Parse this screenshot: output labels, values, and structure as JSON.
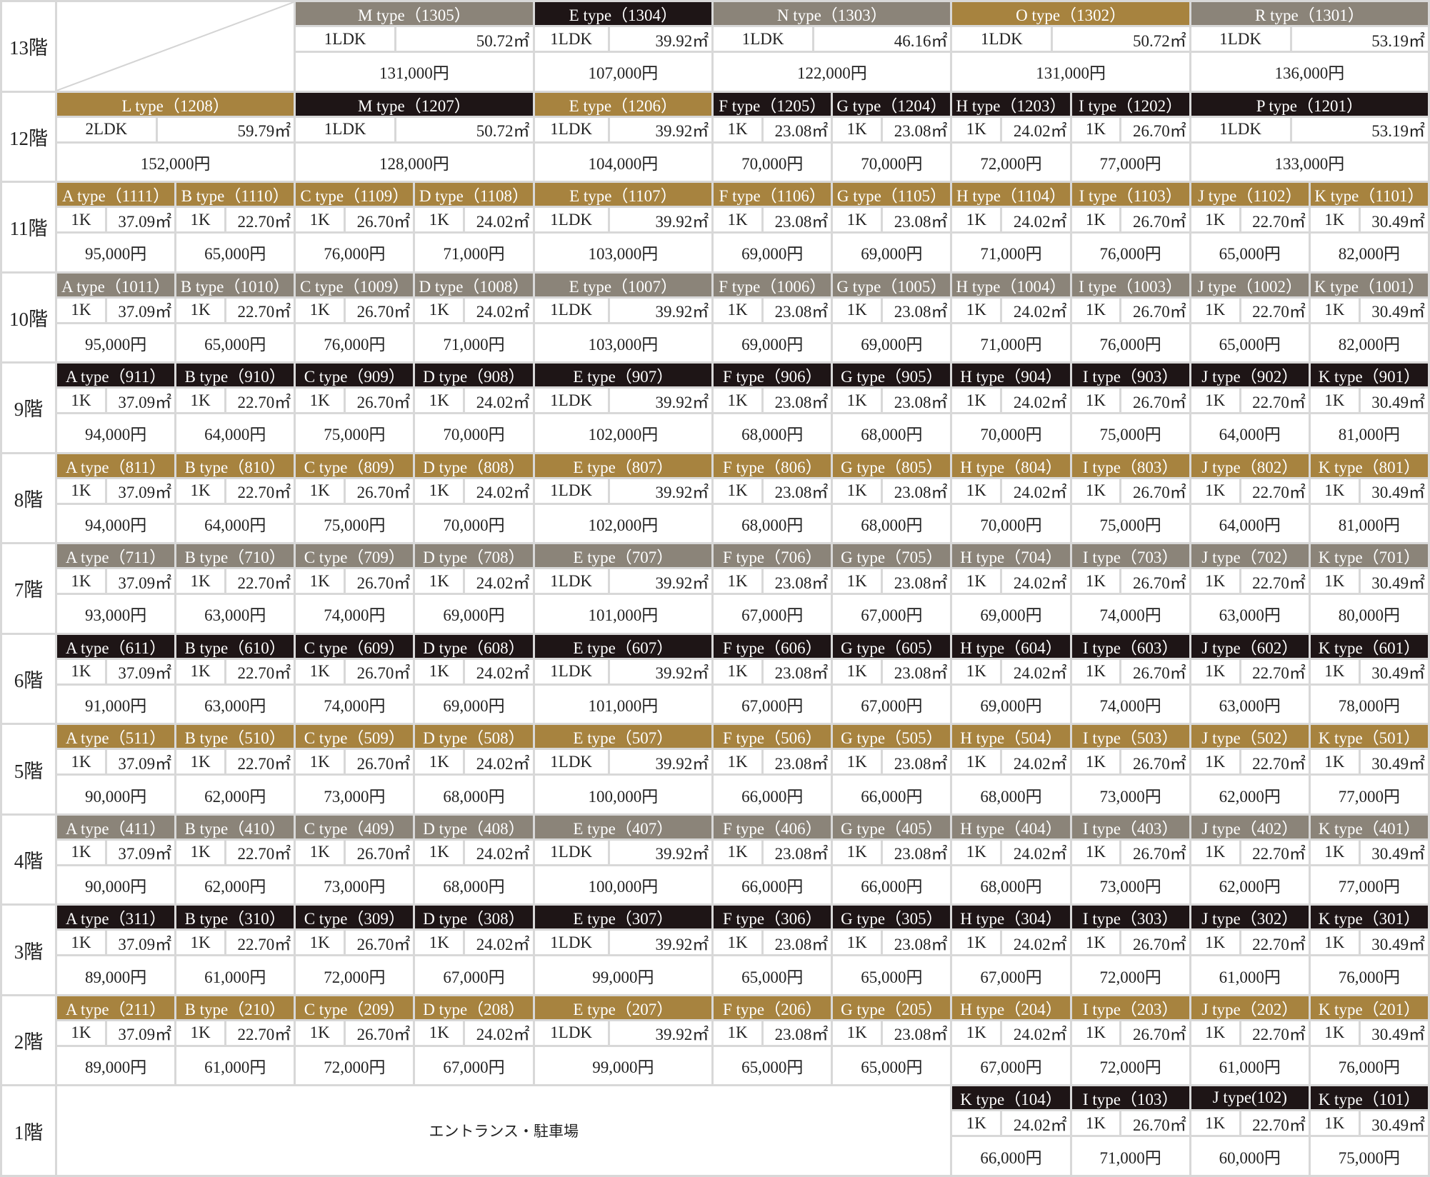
{
  "colors": {
    "gray": "#8b8479",
    "black": "#1e1516",
    "gold": "#a7833f"
  },
  "floors": [
    {
      "label": "13階",
      "color": "gray",
      "units": [
        {
          "name": "M type（1305）",
          "layout": "1LDK",
          "area": "50.72㎡",
          "price": "131,000円",
          "color": "gray"
        },
        {
          "name": "E type（1304）",
          "layout": "1LDK",
          "area": "39.92㎡",
          "price": "107,000円",
          "color": "black"
        },
        {
          "name": "N type（1303）",
          "layout": "1LDK",
          "area": "46.16㎡",
          "price": "122,000円",
          "color": "gray"
        },
        {
          "name": "O type（1302）",
          "layout": "1LDK",
          "area": "50.72㎡",
          "price": "131,000円",
          "color": "gold"
        },
        {
          "name": "R type（1301）",
          "layout": "1LDK",
          "area": "53.19㎡",
          "price": "136,000円",
          "color": "gray"
        }
      ]
    },
    {
      "label": "12階",
      "units": [
        {
          "name": "L type（1208）",
          "layout": "2LDK",
          "area": "59.79㎡",
          "price": "152,000円",
          "color": "gold"
        },
        {
          "name": "M type（1207）",
          "layout": "1LDK",
          "area": "50.72㎡",
          "price": "128,000円",
          "color": "black"
        },
        {
          "name": "E type（1206）",
          "layout": "1LDK",
          "area": "39.92㎡",
          "price": "104,000円",
          "color": "gold"
        },
        {
          "name": "F type（1205）",
          "layout": "1K",
          "area": "23.08㎡",
          "price": "70,000円",
          "color": "black"
        },
        {
          "name": "G type（1204）",
          "layout": "1K",
          "area": "23.08㎡",
          "price": "70,000円",
          "color": "black"
        },
        {
          "name": "H type（1203）",
          "layout": "1K",
          "area": "24.02㎡",
          "price": "72,000円",
          "color": "black"
        },
        {
          "name": "I type（1202）",
          "layout": "1K",
          "area": "26.70㎡",
          "price": "77,000円",
          "color": "black"
        },
        {
          "name": "P type（1201）",
          "layout": "1LDK",
          "area": "53.19㎡",
          "price": "133,000円",
          "color": "black"
        }
      ]
    },
    {
      "label": "11階",
      "color": "gold",
      "units": [
        {
          "name": "A type（1111）",
          "layout": "1K",
          "area": "37.09㎡",
          "price": "95,000円"
        },
        {
          "name": "B type（1110）",
          "layout": "1K",
          "area": "22.70㎡",
          "price": "65,000円"
        },
        {
          "name": "C type（1109）",
          "layout": "1K",
          "area": "26.70㎡",
          "price": "76,000円"
        },
        {
          "name": "D type（1108）",
          "layout": "1K",
          "area": "24.02㎡",
          "price": "71,000円"
        },
        {
          "name": "E type（1107）",
          "layout": "1LDK",
          "area": "39.92㎡",
          "price": "103,000円"
        },
        {
          "name": "F type（1106）",
          "layout": "1K",
          "area": "23.08㎡",
          "price": "69,000円"
        },
        {
          "name": "G type（1105）",
          "layout": "1K",
          "area": "23.08㎡",
          "price": "69,000円"
        },
        {
          "name": "H type（1104）",
          "layout": "1K",
          "area": "24.02㎡",
          "price": "71,000円"
        },
        {
          "name": "I type（1103）",
          "layout": "1K",
          "area": "26.70㎡",
          "price": "76,000円"
        },
        {
          "name": "J type（1102）",
          "layout": "1K",
          "area": "22.70㎡",
          "price": "65,000円"
        },
        {
          "name": "K type（1101）",
          "layout": "1K",
          "area": "30.49㎡",
          "price": "82,000円"
        }
      ]
    },
    {
      "label": "10階",
      "color": "gray",
      "units": [
        {
          "name": "A type（1011）",
          "layout": "1K",
          "area": "37.09㎡",
          "price": "95,000円"
        },
        {
          "name": "B type（1010）",
          "layout": "1K",
          "area": "22.70㎡",
          "price": "65,000円"
        },
        {
          "name": "C type（1009）",
          "layout": "1K",
          "area": "26.70㎡",
          "price": "76,000円"
        },
        {
          "name": "D type（1008）",
          "layout": "1K",
          "area": "24.02㎡",
          "price": "71,000円"
        },
        {
          "name": "E type（1007）",
          "layout": "1LDK",
          "area": "39.92㎡",
          "price": "103,000円"
        },
        {
          "name": "F type（1006）",
          "layout": "1K",
          "area": "23.08㎡",
          "price": "69,000円"
        },
        {
          "name": "G type（1005）",
          "layout": "1K",
          "area": "23.08㎡",
          "price": "69,000円"
        },
        {
          "name": "H type（1004）",
          "layout": "1K",
          "area": "24.02㎡",
          "price": "71,000円"
        },
        {
          "name": "I type（1003）",
          "layout": "1K",
          "area": "26.70㎡",
          "price": "76,000円"
        },
        {
          "name": "J type（1002）",
          "layout": "1K",
          "area": "22.70㎡",
          "price": "65,000円"
        },
        {
          "name": "K type（1001）",
          "layout": "1K",
          "area": "30.49㎡",
          "price": "82,000円"
        }
      ]
    },
    {
      "label": "9階",
      "color": "black",
      "units": [
        {
          "name": "A type（911）",
          "layout": "1K",
          "area": "37.09㎡",
          "price": "94,000円"
        },
        {
          "name": "B type（910）",
          "layout": "1K",
          "area": "22.70㎡",
          "price": "64,000円"
        },
        {
          "name": "C type（909）",
          "layout": "1K",
          "area": "26.70㎡",
          "price": "75,000円"
        },
        {
          "name": "D type（908）",
          "layout": "1K",
          "area": "24.02㎡",
          "price": "70,000円"
        },
        {
          "name": "E type（907）",
          "layout": "1LDK",
          "area": "39.92㎡",
          "price": "102,000円"
        },
        {
          "name": "F type（906）",
          "layout": "1K",
          "area": "23.08㎡",
          "price": "68,000円"
        },
        {
          "name": "G type（905）",
          "layout": "1K",
          "area": "23.08㎡",
          "price": "68,000円"
        },
        {
          "name": "H type（904）",
          "layout": "1K",
          "area": "24.02㎡",
          "price": "70,000円"
        },
        {
          "name": "I type（903）",
          "layout": "1K",
          "area": "26.70㎡",
          "price": "75,000円"
        },
        {
          "name": "J type（902）",
          "layout": "1K",
          "area": "22.70㎡",
          "price": "64,000円"
        },
        {
          "name": "K type（901）",
          "layout": "1K",
          "area": "30.49㎡",
          "price": "81,000円"
        }
      ]
    },
    {
      "label": "8階",
      "color": "gold",
      "units": [
        {
          "name": "A type（811）",
          "layout": "1K",
          "area": "37.09㎡",
          "price": "94,000円"
        },
        {
          "name": "B type（810）",
          "layout": "1K",
          "area": "22.70㎡",
          "price": "64,000円"
        },
        {
          "name": "C type（809）",
          "layout": "1K",
          "area": "26.70㎡",
          "price": "75,000円"
        },
        {
          "name": "D type（808）",
          "layout": "1K",
          "area": "24.02㎡",
          "price": "70,000円"
        },
        {
          "name": "E type（807）",
          "layout": "1LDK",
          "area": "39.92㎡",
          "price": "102,000円"
        },
        {
          "name": "F type（806）",
          "layout": "1K",
          "area": "23.08㎡",
          "price": "68,000円"
        },
        {
          "name": "G type（805）",
          "layout": "1K",
          "area": "23.08㎡",
          "price": "68,000円"
        },
        {
          "name": "H type（804）",
          "layout": "1K",
          "area": "24.02㎡",
          "price": "70,000円"
        },
        {
          "name": "I type（803）",
          "layout": "1K",
          "area": "26.70㎡",
          "price": "75,000円"
        },
        {
          "name": "J type（802）",
          "layout": "1K",
          "area": "22.70㎡",
          "price": "64,000円"
        },
        {
          "name": "K type（801）",
          "layout": "1K",
          "area": "30.49㎡",
          "price": "81,000円"
        }
      ]
    },
    {
      "label": "7階",
      "color": "gray",
      "units": [
        {
          "name": "A type（711）",
          "layout": "1K",
          "area": "37.09㎡",
          "price": "93,000円"
        },
        {
          "name": "B type（710）",
          "layout": "1K",
          "area": "22.70㎡",
          "price": "63,000円"
        },
        {
          "name": "C type（709）",
          "layout": "1K",
          "area": "26.70㎡",
          "price": "74,000円"
        },
        {
          "name": "D type（708）",
          "layout": "1K",
          "area": "24.02㎡",
          "price": "69,000円"
        },
        {
          "name": "E type（707）",
          "layout": "1LDK",
          "area": "39.92㎡",
          "price": "101,000円"
        },
        {
          "name": "F type（706）",
          "layout": "1K",
          "area": "23.08㎡",
          "price": "67,000円"
        },
        {
          "name": "G type（705）",
          "layout": "1K",
          "area": "23.08㎡",
          "price": "67,000円"
        },
        {
          "name": "H type（704）",
          "layout": "1K",
          "area": "24.02㎡",
          "price": "69,000円"
        },
        {
          "name": "I type（703）",
          "layout": "1K",
          "area": "26.70㎡",
          "price": "74,000円"
        },
        {
          "name": "J type（702）",
          "layout": "1K",
          "area": "22.70㎡",
          "price": "63,000円"
        },
        {
          "name": "K type（701）",
          "layout": "1K",
          "area": "30.49㎡",
          "price": "80,000円"
        }
      ]
    },
    {
      "label": "6階",
      "color": "black",
      "units": [
        {
          "name": "A type（611）",
          "layout": "1K",
          "area": "37.09㎡",
          "price": "91,000円"
        },
        {
          "name": "B type（610）",
          "layout": "1K",
          "area": "22.70㎡",
          "price": "63,000円"
        },
        {
          "name": "C type（609）",
          "layout": "1K",
          "area": "26.70㎡",
          "price": "74,000円"
        },
        {
          "name": "D type（608）",
          "layout": "1K",
          "area": "24.02㎡",
          "price": "69,000円"
        },
        {
          "name": "E type（607）",
          "layout": "1LDK",
          "area": "39.92㎡",
          "price": "101,000円"
        },
        {
          "name": "F type（606）",
          "layout": "1K",
          "area": "23.08㎡",
          "price": "67,000円"
        },
        {
          "name": "G type（605）",
          "layout": "1K",
          "area": "23.08㎡",
          "price": "67,000円"
        },
        {
          "name": "H type（604）",
          "layout": "1K",
          "area": "24.02㎡",
          "price": "69,000円"
        },
        {
          "name": "I type（603）",
          "layout": "1K",
          "area": "26.70㎡",
          "price": "74,000円"
        },
        {
          "name": "J type（602）",
          "layout": "1K",
          "area": "22.70㎡",
          "price": "63,000円"
        },
        {
          "name": "K type（601）",
          "layout": "1K",
          "area": "30.49㎡",
          "price": "78,000円"
        }
      ]
    },
    {
      "label": "5階",
      "color": "gold",
      "units": [
        {
          "name": "A type（511）",
          "layout": "1K",
          "area": "37.09㎡",
          "price": "90,000円"
        },
        {
          "name": "B type（510）",
          "layout": "1K",
          "area": "22.70㎡",
          "price": "62,000円"
        },
        {
          "name": "C type（509）",
          "layout": "1K",
          "area": "26.70㎡",
          "price": "73,000円"
        },
        {
          "name": "D type（508）",
          "layout": "1K",
          "area": "24.02㎡",
          "price": "68,000円"
        },
        {
          "name": "E type（507）",
          "layout": "1LDK",
          "area": "39.92㎡",
          "price": "100,000円"
        },
        {
          "name": "F type（506）",
          "layout": "1K",
          "area": "23.08㎡",
          "price": "66,000円"
        },
        {
          "name": "G type（505）",
          "layout": "1K",
          "area": "23.08㎡",
          "price": "66,000円"
        },
        {
          "name": "H type（504）",
          "layout": "1K",
          "area": "24.02㎡",
          "price": "68,000円"
        },
        {
          "name": "I type（503）",
          "layout": "1K",
          "area": "26.70㎡",
          "price": "73,000円"
        },
        {
          "name": "J type（502）",
          "layout": "1K",
          "area": "22.70㎡",
          "price": "62,000円"
        },
        {
          "name": "K type（501）",
          "layout": "1K",
          "area": "30.49㎡",
          "price": "77,000円"
        }
      ]
    },
    {
      "label": "4階",
      "color": "gray",
      "units": [
        {
          "name": "A type（411）",
          "layout": "1K",
          "area": "37.09㎡",
          "price": "90,000円"
        },
        {
          "name": "B type（410）",
          "layout": "1K",
          "area": "22.70㎡",
          "price": "62,000円"
        },
        {
          "name": "C type（409）",
          "layout": "1K",
          "area": "26.70㎡",
          "price": "73,000円"
        },
        {
          "name": "D type（408）",
          "layout": "1K",
          "area": "24.02㎡",
          "price": "68,000円"
        },
        {
          "name": "E type（407）",
          "layout": "1LDK",
          "area": "39.92㎡",
          "price": "100,000円"
        },
        {
          "name": "F type（406）",
          "layout": "1K",
          "area": "23.08㎡",
          "price": "66,000円"
        },
        {
          "name": "G type（405）",
          "layout": "1K",
          "area": "23.08㎡",
          "price": "66,000円"
        },
        {
          "name": "H type（404）",
          "layout": "1K",
          "area": "24.02㎡",
          "price": "68,000円"
        },
        {
          "name": "I type（403）",
          "layout": "1K",
          "area": "26.70㎡",
          "price": "73,000円"
        },
        {
          "name": "J type（402）",
          "layout": "1K",
          "area": "22.70㎡",
          "price": "62,000円"
        },
        {
          "name": "K type（401）",
          "layout": "1K",
          "area": "30.49㎡",
          "price": "77,000円"
        }
      ]
    },
    {
      "label": "3階",
      "color": "black",
      "units": [
        {
          "name": "A type（311）",
          "layout": "1K",
          "area": "37.09㎡",
          "price": "89,000円"
        },
        {
          "name": "B type（310）",
          "layout": "1K",
          "area": "22.70㎡",
          "price": "61,000円"
        },
        {
          "name": "C type（309）",
          "layout": "1K",
          "area": "26.70㎡",
          "price": "72,000円"
        },
        {
          "name": "D type（308）",
          "layout": "1K",
          "area": "24.02㎡",
          "price": "67,000円"
        },
        {
          "name": "E type（307）",
          "layout": "1LDK",
          "area": "39.92㎡",
          "price": "99,000円"
        },
        {
          "name": "F type（306）",
          "layout": "1K",
          "area": "23.08㎡",
          "price": "65,000円"
        },
        {
          "name": "G type（305）",
          "layout": "1K",
          "area": "23.08㎡",
          "price": "65,000円"
        },
        {
          "name": "H type（304）",
          "layout": "1K",
          "area": "24.02㎡",
          "price": "67,000円"
        },
        {
          "name": "I type（303）",
          "layout": "1K",
          "area": "26.70㎡",
          "price": "72,000円"
        },
        {
          "name": "J type（302）",
          "layout": "1K",
          "area": "22.70㎡",
          "price": "61,000円"
        },
        {
          "name": "K type（301）",
          "layout": "1K",
          "area": "30.49㎡",
          "price": "76,000円"
        }
      ]
    },
    {
      "label": "2階",
      "color": "gold",
      "units": [
        {
          "name": "A type（211）",
          "layout": "1K",
          "area": "37.09㎡",
          "price": "89,000円"
        },
        {
          "name": "B type（210）",
          "layout": "1K",
          "area": "22.70㎡",
          "price": "61,000円"
        },
        {
          "name": "C type（209）",
          "layout": "1K",
          "area": "26.70㎡",
          "price": "72,000円"
        },
        {
          "name": "D type（208）",
          "layout": "1K",
          "area": "24.02㎡",
          "price": "67,000円"
        },
        {
          "name": "E type（207）",
          "layout": "1LDK",
          "area": "39.92㎡",
          "price": "99,000円"
        },
        {
          "name": "F type（206）",
          "layout": "1K",
          "area": "23.08㎡",
          "price": "65,000円"
        },
        {
          "name": "G type（205）",
          "layout": "1K",
          "area": "23.08㎡",
          "price": "65,000円"
        },
        {
          "name": "H type（204）",
          "layout": "1K",
          "area": "24.02㎡",
          "price": "67,000円"
        },
        {
          "name": "I type（203）",
          "layout": "1K",
          "area": "26.70㎡",
          "price": "72,000円"
        },
        {
          "name": "J type（202）",
          "layout": "1K",
          "area": "22.70㎡",
          "price": "61,000円"
        },
        {
          "name": "K type（201）",
          "layout": "1K",
          "area": "30.49㎡",
          "price": "76,000円"
        }
      ]
    },
    {
      "label": "1階",
      "color": "black",
      "entrance": "エントランス・駐車場",
      "units": [
        {
          "name": "K type（104）",
          "layout": "1K",
          "area": "24.02㎡",
          "price": "66,000円"
        },
        {
          "name": "I type（103）",
          "layout": "1K",
          "area": "26.70㎡",
          "price": "71,000円"
        },
        {
          "name": "J type(102)",
          "layout": "1K",
          "area": "22.70㎡",
          "price": "60,000円"
        },
        {
          "name": "K type（101）",
          "layout": "1K",
          "area": "30.49㎡",
          "price": "75,000円"
        }
      ]
    }
  ]
}
